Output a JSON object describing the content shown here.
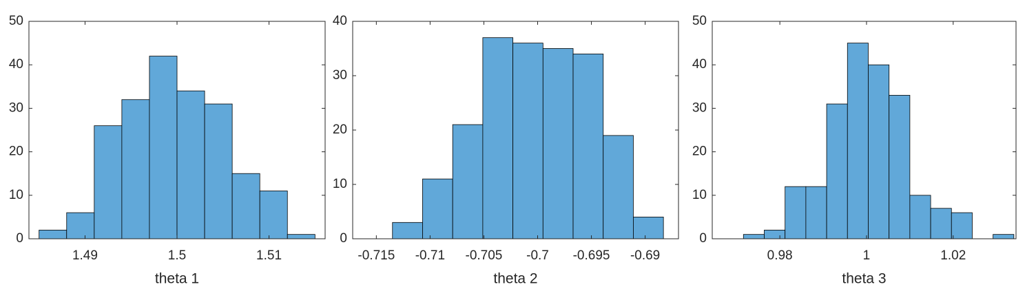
{
  "chart_data": [
    {
      "type": "histogram",
      "xlabel": "theta 1",
      "color": "#61a8d9",
      "bins": [
        1.485,
        1.488,
        1.491,
        1.494,
        1.497,
        1.5,
        1.503,
        1.506,
        1.509,
        1.512,
        1.515
      ],
      "values": [
        2,
        6,
        26,
        32,
        42,
        34,
        31,
        15,
        11,
        1
      ],
      "xlim": [
        1.4839,
        1.5161
      ],
      "xticks": [
        1.49,
        1.5,
        1.51
      ],
      "ylim": [
        0,
        50
      ],
      "yticks": [
        0,
        10,
        20,
        30,
        40,
        50
      ]
    },
    {
      "type": "histogram",
      "xlabel": "theta 2",
      "color": "#61a8d9",
      "bins": [
        -0.7135,
        -0.7107,
        -0.7079,
        -0.7051,
        -0.7023,
        -0.6995,
        -0.6967,
        -0.6939,
        -0.6911,
        -0.6883
      ],
      "values": [
        3,
        11,
        21,
        37,
        36,
        35,
        34,
        19,
        4
      ],
      "xlim": [
        -0.7172,
        -0.6869
      ],
      "xticks": [
        -0.715,
        -0.71,
        -0.705,
        -0.7,
        -0.695,
        -0.69
      ],
      "ylim": [
        0,
        40
      ],
      "yticks": [
        0,
        10,
        20,
        30,
        40
      ]
    },
    {
      "type": "histogram",
      "xlabel": "theta 3",
      "color": "#61a8d9",
      "bins": [
        0.9716,
        0.9764,
        0.9812,
        0.986,
        0.9908,
        0.9956,
        1.0004,
        1.0052,
        1.01,
        1.0148,
        1.0196,
        1.0244,
        1.0292,
        1.034
      ],
      "values": [
        1,
        2,
        12,
        12,
        31,
        45,
        40,
        33,
        10,
        7,
        6,
        0,
        1
      ],
      "xlim": [
        0.9644,
        1.0345
      ],
      "xticks": [
        0.98,
        1,
        1.02
      ],
      "ylim": [
        0,
        50
      ],
      "yticks": [
        0,
        10,
        20,
        30,
        40,
        50
      ]
    }
  ]
}
